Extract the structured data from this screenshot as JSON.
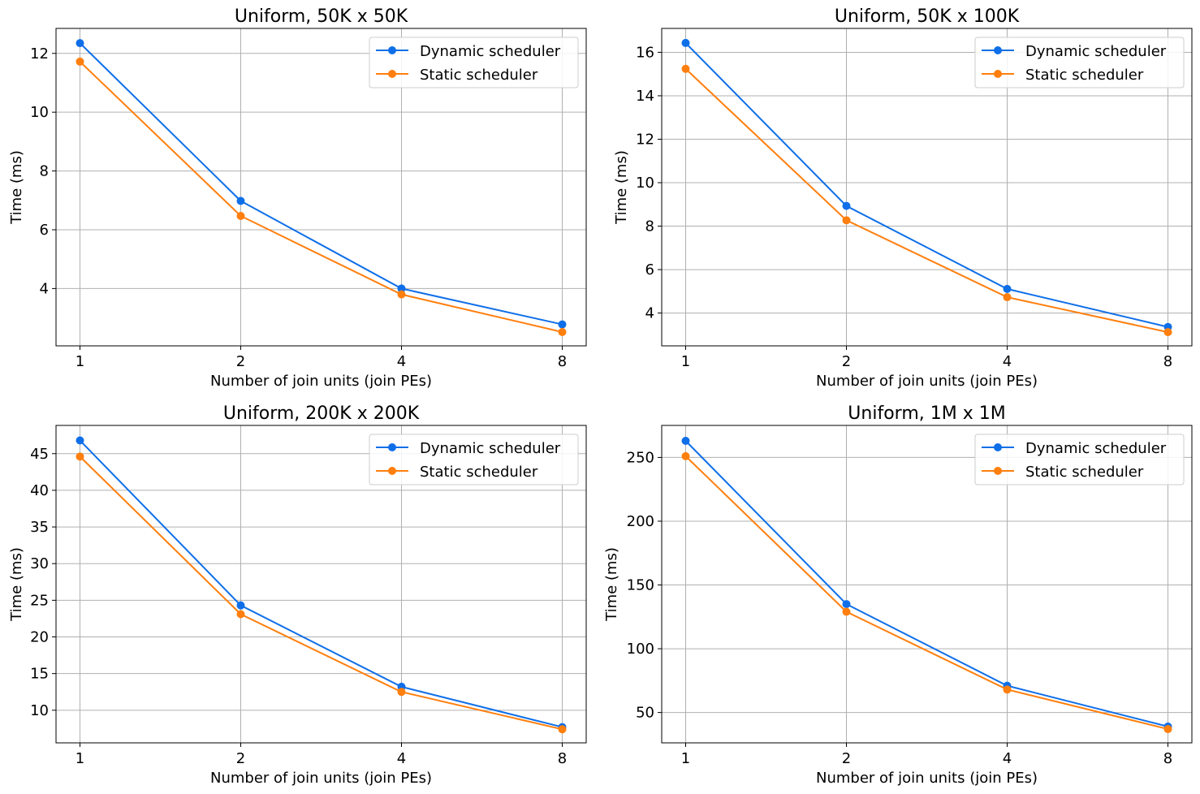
{
  "colors": {
    "dynamic": "#0f6fe8",
    "static": "#ff7f0e",
    "grid": "#b0b0b0"
  },
  "chart_data": [
    {
      "type": "line",
      "title": "Uniform, 50K x 50K",
      "xlabel": "Number of join units (join PEs)",
      "ylabel": "Time (ms)",
      "categories": [
        "1",
        "2",
        "4",
        "8"
      ],
      "yticks": [
        4,
        6,
        8,
        10,
        12
      ],
      "ylim": [
        2.05,
        12.85
      ],
      "grid": true,
      "legend_position": "top-right",
      "series": [
        {
          "name": "Dynamic scheduler",
          "color": "#0f6fe8",
          "values": [
            12.35,
            6.98,
            4.0,
            2.78
          ]
        },
        {
          "name": "Static scheduler",
          "color": "#ff7f0e",
          "values": [
            11.72,
            6.47,
            3.8,
            2.52
          ]
        }
      ]
    },
    {
      "type": "line",
      "title": "Uniform, 50K x 100K",
      "xlabel": "Number of join units (join PEs)",
      "ylabel": "Time (ms)",
      "categories": [
        "1",
        "2",
        "4",
        "8"
      ],
      "yticks": [
        4,
        6,
        8,
        10,
        12,
        14,
        16
      ],
      "ylim": [
        2.49,
        17.1
      ],
      "grid": true,
      "legend_position": "top-right",
      "series": [
        {
          "name": "Dynamic scheduler",
          "color": "#0f6fe8",
          "values": [
            16.43,
            8.93,
            5.11,
            3.36
          ]
        },
        {
          "name": "Static scheduler",
          "color": "#ff7f0e",
          "values": [
            15.24,
            8.27,
            4.73,
            3.12
          ]
        }
      ]
    },
    {
      "type": "line",
      "title": "Uniform, 200K x 200K",
      "xlabel": "Number of join units (join PEs)",
      "ylabel": "Time (ms)",
      "categories": [
        "1",
        "2",
        "4",
        "8"
      ],
      "yticks": [
        10,
        15,
        20,
        25,
        30,
        35,
        40,
        45
      ],
      "ylim": [
        5.55,
        48.85
      ],
      "grid": true,
      "legend_position": "top-right",
      "series": [
        {
          "name": "Dynamic scheduler",
          "color": "#0f6fe8",
          "values": [
            46.8,
            24.3,
            13.2,
            7.7
          ]
        },
        {
          "name": "Static scheduler",
          "color": "#ff7f0e",
          "values": [
            44.6,
            23.1,
            12.5,
            7.4
          ]
        }
      ]
    },
    {
      "type": "line",
      "title": "Uniform, 1M x 1M",
      "xlabel": "Number of join units (join PEs)",
      "ylabel": "Time (ms)",
      "categories": [
        "1",
        "2",
        "4",
        "8"
      ],
      "yticks": [
        50,
        100,
        150,
        200,
        250
      ],
      "ylim": [
        26.2,
        275.1
      ],
      "grid": true,
      "legend_position": "top-right",
      "series": [
        {
          "name": "Dynamic scheduler",
          "color": "#0f6fe8",
          "values": [
            263,
            135,
            71,
            39
          ]
        },
        {
          "name": "Static scheduler",
          "color": "#ff7f0e",
          "values": [
            251,
            129,
            68,
            37
          ]
        }
      ]
    }
  ]
}
